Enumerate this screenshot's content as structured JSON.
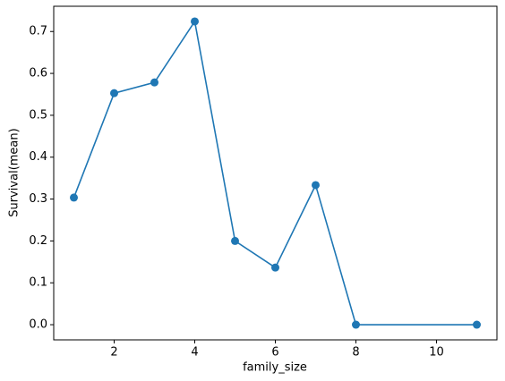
{
  "chart_data": {
    "type": "line",
    "x_label": "family_size",
    "y_label": "Survival(mean)",
    "x": [
      1,
      2,
      3,
      4,
      5,
      6,
      7,
      8,
      11
    ],
    "series": [
      {
        "name": "Survival(mean)",
        "color": "#1f77b4",
        "values": [
          0.3035,
          0.5528,
          0.5784,
          0.7241,
          0.2,
          0.1364,
          0.3333,
          0,
          0
        ]
      }
    ],
    "xlim": [
      0.5,
      11.5
    ],
    "xticks": [
      2,
      4,
      6,
      8,
      10
    ],
    "ylim": [
      -0.0362,
      0.7603
    ],
    "yticks": [
      {
        "value": 0,
        "label": "0.0"
      },
      0.1,
      0.2,
      0.3,
      0.4,
      0.5,
      0.6,
      0.7
    ],
    "grid": false
  }
}
